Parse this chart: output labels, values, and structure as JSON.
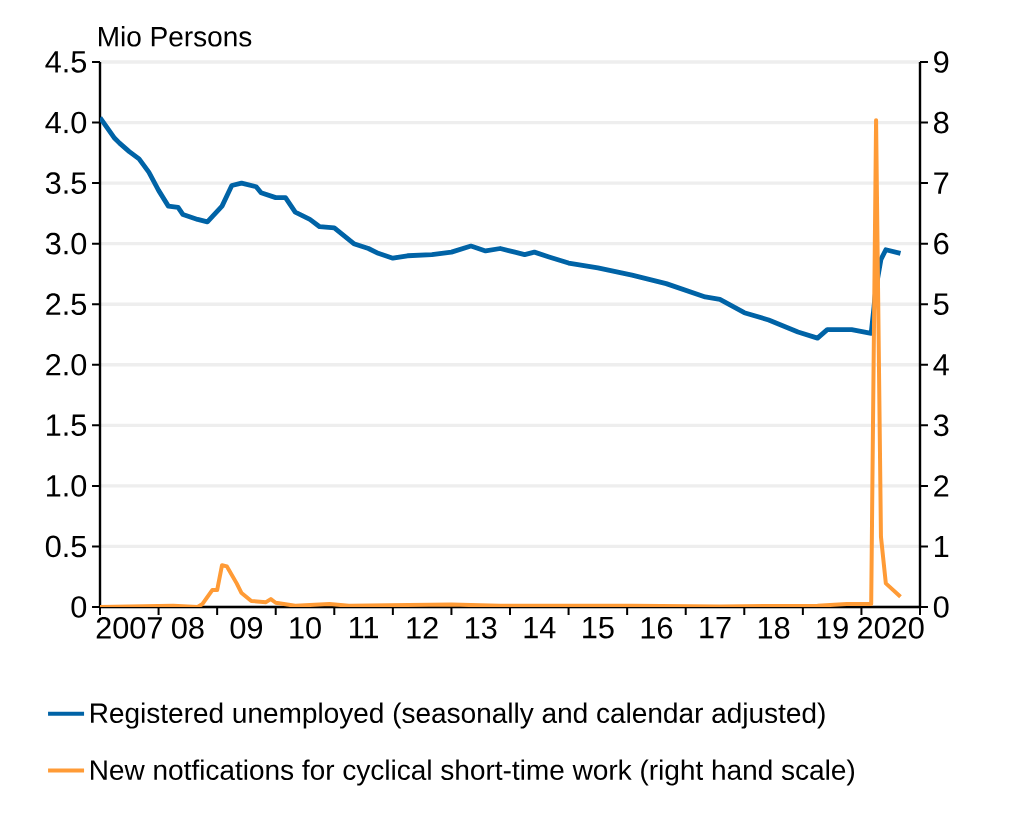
{
  "chart_data": {
    "type": "line",
    "ylabel": "Mio Persons",
    "xlim": [
      "2007-01",
      "2021-01"
    ],
    "xticks": [
      {
        "value": "2007-01",
        "label": null
      },
      {
        "value": "2008-01",
        "label": null
      },
      {
        "value": "2009-01",
        "label": null
      },
      {
        "value": "2010-01",
        "label": null
      },
      {
        "value": "2011-01",
        "label": null
      },
      {
        "value": "2012-01",
        "label": null
      },
      {
        "value": "2013-01",
        "label": null
      },
      {
        "value": "2014-01",
        "label": null
      },
      {
        "value": "2015-01",
        "label": null
      },
      {
        "value": "2016-01",
        "label": null
      },
      {
        "value": "2017-01",
        "label": null
      },
      {
        "value": "2018-01",
        "label": null
      },
      {
        "value": "2019-01",
        "label": null
      },
      {
        "value": "2020-01",
        "label": null
      },
      {
        "value": "2021-01",
        "label": null
      },
      {
        "value": "2007-07",
        "label": "2007"
      },
      {
        "value": "2008-07",
        "label": "08"
      },
      {
        "value": "2009-07",
        "label": "09"
      },
      {
        "value": "2010-07",
        "label": "10"
      },
      {
        "value": "2011-07",
        "label": "11"
      },
      {
        "value": "2012-07",
        "label": "12"
      },
      {
        "value": "2013-07",
        "label": "13"
      },
      {
        "value": "2014-07",
        "label": "14"
      },
      {
        "value": "2015-07",
        "label": "15"
      },
      {
        "value": "2016-07",
        "label": "16"
      },
      {
        "value": "2017-07",
        "label": "17"
      },
      {
        "value": "2018-07",
        "label": "18"
      },
      {
        "value": "2019-07",
        "label": "19"
      },
      {
        "value": "2020-07",
        "label": "2020"
      }
    ],
    "ylim": [
      0,
      4.5
    ],
    "yticks": [
      0,
      0.5,
      {
        "value": 1,
        "label": "1.0"
      },
      1.5,
      {
        "value": 2,
        "label": "2.0"
      },
      2.5,
      {
        "value": 3,
        "label": "3.0"
      },
      3.5,
      {
        "value": 4,
        "label": "4.0"
      },
      4.5
    ],
    "y2lim": [
      0,
      9
    ],
    "y2ticks": [
      0,
      1,
      2,
      3,
      4,
      5,
      6,
      7,
      8,
      9
    ],
    "grid": "y",
    "legend": "bottom",
    "series": [
      {
        "name": "Registered unemployed (seasonally and calendar adjusted)",
        "color": "#0063a6",
        "x": [
          "2007-01",
          "2007-04",
          "2007-05",
          "2007-07",
          "2007-09",
          "2007-11",
          "2008-01",
          "2008-03",
          "2008-05",
          "2008-06",
          "2008-09",
          "2008-11",
          "2009-02",
          "2009-04",
          "2009-06",
          "2009-09",
          "2009-10",
          "2010-01",
          "2010-03",
          "2010-05",
          "2010-08",
          "2010-10",
          "2011-01",
          "2011-05",
          "2011-08",
          "2011-10",
          "2012-01",
          "2012-04",
          "2012-09",
          "2013-01",
          "2013-05",
          "2013-08",
          "2013-11",
          "2014-02",
          "2014-04",
          "2014-06",
          "2014-09",
          "2015-01",
          "2015-07",
          "2016-02",
          "2016-09",
          "2017-05",
          "2017-08",
          "2018-01",
          "2018-06",
          "2018-12",
          "2019-04",
          "2019-06",
          "2019-11",
          "2020-03",
          "2020-04",
          "2020-05",
          "2020-06",
          "2020-09"
        ],
        "values": [
          4.04,
          3.87,
          3.83,
          3.76,
          3.7,
          3.59,
          3.44,
          3.31,
          3.3,
          3.24,
          3.2,
          3.18,
          3.31,
          3.48,
          3.5,
          3.47,
          3.42,
          3.38,
          3.38,
          3.26,
          3.2,
          3.14,
          3.13,
          3.0,
          2.96,
          2.92,
          2.88,
          2.9,
          2.91,
          2.93,
          2.98,
          2.94,
          2.96,
          2.93,
          2.91,
          2.93,
          2.89,
          2.84,
          2.8,
          2.74,
          2.67,
          2.56,
          2.54,
          2.43,
          2.37,
          2.27,
          2.22,
          2.29,
          2.29,
          2.26,
          2.64,
          2.87,
          2.95,
          2.92
        ]
      },
      {
        "name": "New notfications for cyclical short-time work (right hand scale)",
        "color": "#ff9b36",
        "axis": "y2",
        "x": [
          "2007-01",
          "2008-04",
          "2008-09",
          "2008-10",
          "2008-12",
          "2009-01",
          "2009-02",
          "2009-03",
          "2009-05",
          "2009-06",
          "2009-08",
          "2009-11",
          "2009-12",
          "2010-01",
          "2010-05",
          "2010-12",
          "2011-04",
          "2011-12",
          "2013-01",
          "2013-11",
          "2014-06",
          "2016-02",
          "2017-08",
          "2019-04",
          "2019-10",
          "2020-03",
          "2020-04",
          "2020-05",
          "2020-06",
          "2020-09"
        ],
        "values": [
          0,
          0.02,
          0,
          0.05,
          0.28,
          0.28,
          0.69,
          0.67,
          0.39,
          0.23,
          0.1,
          0.08,
          0.13,
          0.07,
          0.02,
          0.05,
          0.02,
          0.03,
          0.04,
          0.02,
          0.02,
          0.02,
          0.01,
          0.02,
          0.05,
          0.05,
          8.04,
          1.16,
          0.39,
          0.17
        ]
      }
    ]
  }
}
